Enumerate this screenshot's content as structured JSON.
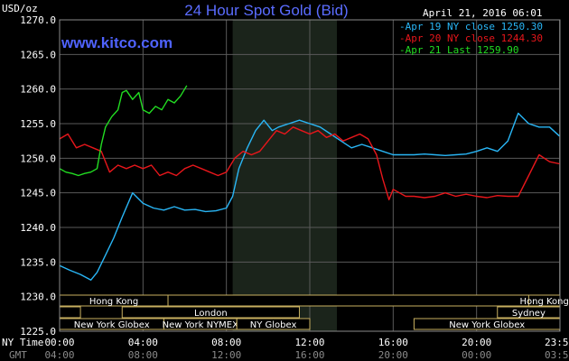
{
  "header": {
    "title": "24 Hour Spot Gold (Bid)",
    "unit": "USD/oz",
    "date": "April 21, 2016 06:01",
    "brand": "www.kitco.com"
  },
  "timezones": {
    "ny_label": "NY Time",
    "gmt_label": "GMT"
  },
  "colors": {
    "background": "#000000",
    "grid": "#5a5a5a",
    "highlight": "#1b241b",
    "apr19": "#29b6f6",
    "apr20": "#e8161b",
    "apr21": "#22dd22",
    "session_border": "#c8b060"
  },
  "sessions": {
    "row1": [
      {
        "label": "Hong Kong",
        "start": 0,
        "end": 5.2
      },
      {
        "label": "",
        "start": 5.2,
        "end": 24
      },
      {
        "label": "Hong Kong",
        "start": 22.5,
        "end": 24
      }
    ],
    "row2": [
      {
        "label": "",
        "start": 0,
        "end": 1.0
      },
      {
        "label": "London",
        "start": 3.0,
        "end": 11.5
      },
      {
        "label": "Sydney",
        "start": 21.0,
        "end": 24
      }
    ],
    "row3": [
      {
        "label": "New York Globex",
        "start": 0,
        "end": 5.0
      },
      {
        "label": "New York NYMEX",
        "start": 5.0,
        "end": 8.5
      },
      {
        "label": "NY Globex",
        "start": 8.5,
        "end": 12.0
      },
      {
        "label": "New York Globex",
        "start": 17.0,
        "end": 24
      }
    ]
  },
  "chart_data": {
    "type": "line",
    "title": "24 Hour Spot Gold (Bid)",
    "ylabel": "USD/oz",
    "xlim": [
      0,
      24
    ],
    "ylim": [
      1225,
      1270
    ],
    "grid": true,
    "legend": "top-right",
    "x_ticks": [
      0,
      4,
      8,
      12,
      16,
      20,
      23.98
    ],
    "x_tick_labels": [
      "00:00",
      "04:00",
      "08:00",
      "12:00",
      "16:00",
      "20:00",
      "23:59"
    ],
    "gmt_tick_labels": [
      "04:00",
      "08:00",
      "12:00",
      "16:00",
      "20:00",
      "00:00",
      "03:59"
    ],
    "y_ticks": [
      1225,
      1230,
      1235,
      1240,
      1245,
      1250,
      1255,
      1260,
      1265,
      1270
    ],
    "y_tick_labels": [
      "1225.0",
      "1230.0",
      "1235.0",
      "1240.0",
      "1245.0",
      "1250.0",
      "1255.0",
      "1260.0",
      "1265.0",
      "1270.0"
    ],
    "highlight_range": [
      8.3,
      13.3
    ],
    "series": [
      {
        "name": "Apr 19 NY close 1250.30",
        "key": "apr19",
        "x": [
          0,
          0.5,
          1.0,
          1.5,
          1.8,
          2.2,
          2.6,
          3.0,
          3.5,
          4.0,
          4.5,
          5.0,
          5.5,
          6.0,
          6.5,
          7.0,
          7.5,
          8.0,
          8.3,
          8.6,
          9.0,
          9.4,
          9.8,
          10.2,
          10.5,
          11.0,
          11.5,
          12.0,
          12.5,
          13.0,
          13.5,
          14.0,
          14.5,
          15.0,
          15.5,
          16.0,
          16.5,
          17.0,
          17.5,
          18.0,
          18.5,
          19.0,
          19.5,
          20.0,
          20.5,
          21.0,
          21.5,
          22.0,
          22.5,
          23.0,
          23.5,
          23.98
        ],
        "y": [
          1234.5,
          1233.8,
          1233.2,
          1232.4,
          1233.5,
          1236.0,
          1238.5,
          1241.5,
          1245.0,
          1243.5,
          1242.8,
          1242.5,
          1243.0,
          1242.5,
          1242.6,
          1242.3,
          1242.4,
          1242.8,
          1244.5,
          1248.5,
          1251.5,
          1254.0,
          1255.5,
          1254.0,
          1254.5,
          1255.0,
          1255.5,
          1255.0,
          1254.5,
          1253.5,
          1252.5,
          1251.5,
          1252.0,
          1251.5,
          1251.0,
          1250.5,
          1250.5,
          1250.5,
          1250.6,
          1250.5,
          1250.4,
          1250.5,
          1250.6,
          1251.0,
          1251.5,
          1251.0,
          1252.5,
          1256.5,
          1255.0,
          1254.5,
          1254.5,
          1253.2
        ]
      },
      {
        "name": "Apr 20 NY close 1244.30",
        "key": "apr20",
        "x": [
          0,
          0.4,
          0.8,
          1.2,
          1.6,
          2.0,
          2.4,
          2.8,
          3.2,
          3.6,
          4.0,
          4.4,
          4.8,
          5.2,
          5.6,
          6.0,
          6.4,
          6.8,
          7.2,
          7.6,
          8.0,
          8.4,
          8.8,
          9.2,
          9.6,
          10.0,
          10.4,
          10.8,
          11.2,
          11.6,
          12.0,
          12.4,
          12.8,
          13.2,
          13.6,
          14.0,
          14.4,
          14.8,
          15.2,
          15.5,
          15.8,
          16.0,
          16.3,
          16.6,
          17.0,
          17.5,
          18.0,
          18.5,
          19.0,
          19.5,
          20.0,
          20.5,
          21.0,
          21.5,
          22.0,
          22.5,
          23.0,
          23.5,
          23.98
        ],
        "y": [
          1252.8,
          1253.5,
          1251.5,
          1252.0,
          1251.5,
          1251.0,
          1248.0,
          1249.0,
          1248.5,
          1249.0,
          1248.5,
          1249.0,
          1247.5,
          1248.0,
          1247.5,
          1248.5,
          1249.0,
          1248.5,
          1248.0,
          1247.5,
          1248.0,
          1250.0,
          1251.0,
          1250.5,
          1251.0,
          1252.5,
          1254.0,
          1253.5,
          1254.5,
          1254.0,
          1253.5,
          1254.0,
          1253.0,
          1253.5,
          1252.5,
          1253.0,
          1253.5,
          1252.8,
          1250.5,
          1247.0,
          1244.0,
          1245.5,
          1245.0,
          1244.5,
          1244.5,
          1244.3,
          1244.5,
          1245.0,
          1244.5,
          1244.8,
          1244.5,
          1244.3,
          1244.6,
          1244.5,
          1244.5,
          1247.5,
          1250.5,
          1249.5,
          1249.2
        ]
      },
      {
        "name": "Apr 21 Last 1259.90",
        "key": "apr21",
        "x": [
          0,
          0.3,
          0.6,
          0.9,
          1.2,
          1.5,
          1.8,
          2.0,
          2.2,
          2.5,
          2.8,
          3.0,
          3.2,
          3.5,
          3.8,
          4.0,
          4.3,
          4.6,
          4.9,
          5.2,
          5.5,
          5.8,
          6.1
        ],
        "y": [
          1248.5,
          1248.0,
          1247.8,
          1247.5,
          1247.8,
          1248.0,
          1248.5,
          1252.0,
          1254.5,
          1256.0,
          1257.0,
          1259.5,
          1259.8,
          1258.5,
          1259.5,
          1257.0,
          1256.5,
          1257.5,
          1257.0,
          1258.5,
          1258.0,
          1259.0,
          1260.5
        ]
      }
    ]
  }
}
